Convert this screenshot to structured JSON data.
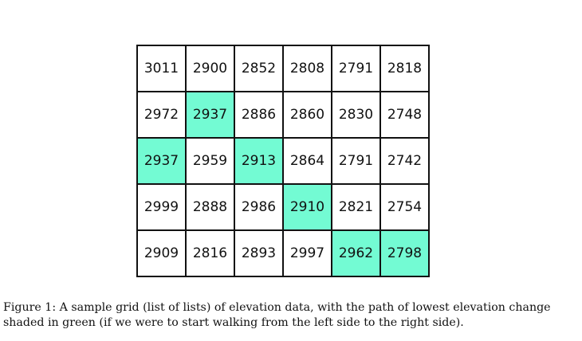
{
  "grid": {
    "rows": [
      [
        "3011",
        "2900",
        "2852",
        "2808",
        "2791",
        "2818"
      ],
      [
        "2972",
        "2937",
        "2886",
        "2860",
        "2830",
        "2748"
      ],
      [
        "2937",
        "2959",
        "2913",
        "2864",
        "2791",
        "2742"
      ],
      [
        "2999",
        "2888",
        "2986",
        "2910",
        "2821",
        "2754"
      ],
      [
        "2909",
        "2816",
        "2893",
        "2997",
        "2962",
        "2798"
      ]
    ],
    "path_cells": [
      [
        2,
        0
      ],
      [
        1,
        1
      ],
      [
        2,
        2
      ],
      [
        3,
        3
      ],
      [
        4,
        4
      ],
      [
        4,
        5
      ]
    ],
    "path_color": "#73fbd3"
  },
  "caption": {
    "line1": "Figure 1: A sample grid (list of lists) of elevation data, with the path of lowest elevation change",
    "line2": "shaded in green (if we were to start walking from the left side to the right side)."
  }
}
